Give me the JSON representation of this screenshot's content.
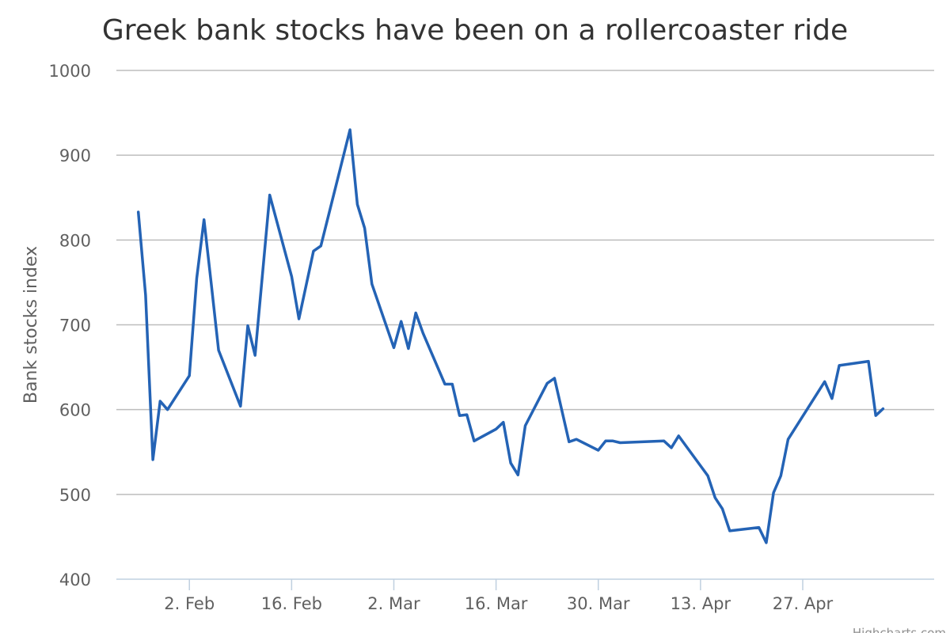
{
  "chart_data": {
    "type": "line",
    "title": "Greek bank stocks have been on a rollercoaster ride",
    "xlabel": "",
    "ylabel": "Bank stocks index",
    "ylim": [
      400,
      1000
    ],
    "yticks": [
      400,
      500,
      600,
      700,
      800,
      900,
      1000
    ],
    "xrange": [
      "2015-01-23",
      "2015-05-15"
    ],
    "xticks": [
      {
        "date": "2015-02-02",
        "label": "2. Feb"
      },
      {
        "date": "2015-02-16",
        "label": "16. Feb"
      },
      {
        "date": "2015-03-02",
        "label": "2. Mar"
      },
      {
        "date": "2015-03-16",
        "label": "16. Mar"
      },
      {
        "date": "2015-03-30",
        "label": "30. Mar"
      },
      {
        "date": "2015-04-13",
        "label": "13. Apr"
      },
      {
        "date": "2015-04-27",
        "label": "27. Apr"
      }
    ],
    "grid": true,
    "legend": "none",
    "colors": {
      "line": "#2463b5",
      "grid": "#bdbdbd",
      "axis": "#c0d0e0"
    },
    "series": [
      {
        "points": [
          [
            "2015-01-26",
            833
          ],
          [
            "2015-01-27",
            735
          ],
          [
            "2015-01-28",
            541
          ],
          [
            "2015-01-29",
            610
          ],
          [
            "2015-01-30",
            600
          ],
          [
            "2015-02-02",
            640
          ],
          [
            "2015-02-03",
            755
          ],
          [
            "2015-02-04",
            824
          ],
          [
            "2015-02-05",
            748
          ],
          [
            "2015-02-06",
            670
          ],
          [
            "2015-02-09",
            604
          ],
          [
            "2015-02-10",
            699
          ],
          [
            "2015-02-11",
            664
          ],
          [
            "2015-02-13",
            853
          ],
          [
            "2015-02-16",
            757
          ],
          [
            "2015-02-17",
            707
          ],
          [
            "2015-02-19",
            787
          ],
          [
            "2015-02-20",
            793
          ],
          [
            "2015-02-24",
            930
          ],
          [
            "2015-02-25",
            842
          ],
          [
            "2015-02-26",
            814
          ],
          [
            "2015-02-27",
            748
          ],
          [
            "2015-03-02",
            673
          ],
          [
            "2015-03-03",
            704
          ],
          [
            "2015-03-04",
            672
          ],
          [
            "2015-03-05",
            714
          ],
          [
            "2015-03-06",
            690
          ],
          [
            "2015-03-09",
            630
          ],
          [
            "2015-03-10",
            630
          ],
          [
            "2015-03-11",
            593
          ],
          [
            "2015-03-12",
            594
          ],
          [
            "2015-03-13",
            563
          ],
          [
            "2015-03-16",
            577
          ],
          [
            "2015-03-17",
            585
          ],
          [
            "2015-03-18",
            537
          ],
          [
            "2015-03-19",
            523
          ],
          [
            "2015-03-20",
            581
          ],
          [
            "2015-03-23",
            631
          ],
          [
            "2015-03-24",
            637
          ],
          [
            "2015-03-26",
            562
          ],
          [
            "2015-03-27",
            565
          ],
          [
            "2015-03-30",
            552
          ],
          [
            "2015-03-31",
            563
          ],
          [
            "2015-04-01",
            563
          ],
          [
            "2015-04-02",
            561
          ],
          [
            "2015-04-08",
            563
          ],
          [
            "2015-04-09",
            555
          ],
          [
            "2015-04-10",
            569
          ],
          [
            "2015-04-14",
            522
          ],
          [
            "2015-04-15",
            496
          ],
          [
            "2015-04-16",
            483
          ],
          [
            "2015-04-17",
            457
          ],
          [
            "2015-04-21",
            461
          ],
          [
            "2015-04-22",
            443
          ],
          [
            "2015-04-23",
            502
          ],
          [
            "2015-04-24",
            522
          ],
          [
            "2015-04-25",
            565
          ],
          [
            "2015-04-30",
            633
          ],
          [
            "2015-05-01",
            613
          ],
          [
            "2015-05-02",
            652
          ],
          [
            "2015-05-06",
            657
          ],
          [
            "2015-05-07",
            593
          ],
          [
            "2015-05-08",
            601
          ]
        ]
      }
    ]
  },
  "credit": "Highcharts.com"
}
